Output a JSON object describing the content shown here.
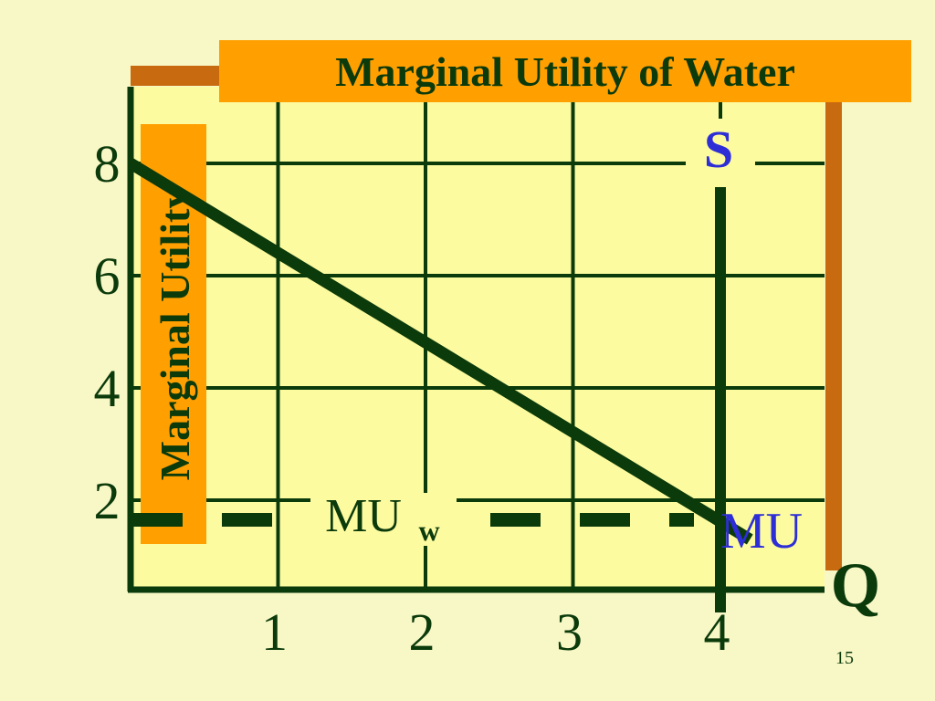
{
  "chart_data": {
    "type": "line",
    "title": "Marginal Utility of Water",
    "ylabel": "Marginal Utility",
    "xlabel": "Q",
    "x_ticks": [
      "1",
      "2",
      "3",
      "4"
    ],
    "y_ticks": [
      "2",
      "4",
      "6",
      "8"
    ],
    "xlim": [
      0,
      5
    ],
    "ylim": [
      1,
      9
    ],
    "grid": true,
    "series": [
      {
        "name": "MU",
        "x": [
          0,
          4.2
        ],
        "y": [
          8,
          1.3
        ],
        "color": "#0b3a0b"
      },
      {
        "name": "S",
        "x": [
          4,
          4
        ],
        "y": [
          8,
          0
        ],
        "color": "#0b3a0b"
      }
    ],
    "price_line": {
      "label": "MU",
      "label_sub": "w",
      "y": 1.65
    },
    "annotations": {
      "supply_label": "S",
      "demand_label": "MU"
    }
  },
  "slide_number": "15",
  "colors": {
    "background": "#f8f7c6",
    "plot_area": "#fdfba0",
    "title_box": "#ff9f00",
    "shadow": "#c86b10",
    "ink": "#0b3a0b",
    "accent": "#2e2ed6"
  }
}
